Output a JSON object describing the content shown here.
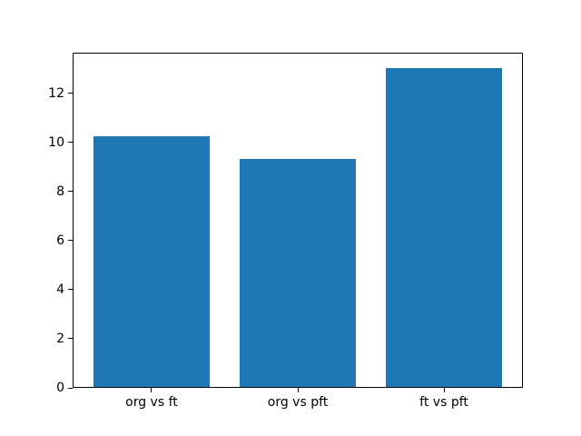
{
  "figure": {
    "background": "#ffffff"
  },
  "chart_data": {
    "type": "bar",
    "categories": [
      "org vs ft",
      "org vs pft",
      "ft vs pft"
    ],
    "values": [
      10.2,
      9.3,
      13.0
    ],
    "title": "",
    "xlabel": "",
    "ylabel": "",
    "ylim": [
      0,
      13.65
    ],
    "yticks": [
      0,
      2,
      4,
      6,
      8,
      10,
      12
    ],
    "bar_color": "#1f77b4",
    "axis_color": "#000000",
    "tick_label_color": "#000000",
    "grid": false,
    "legend": null
  }
}
